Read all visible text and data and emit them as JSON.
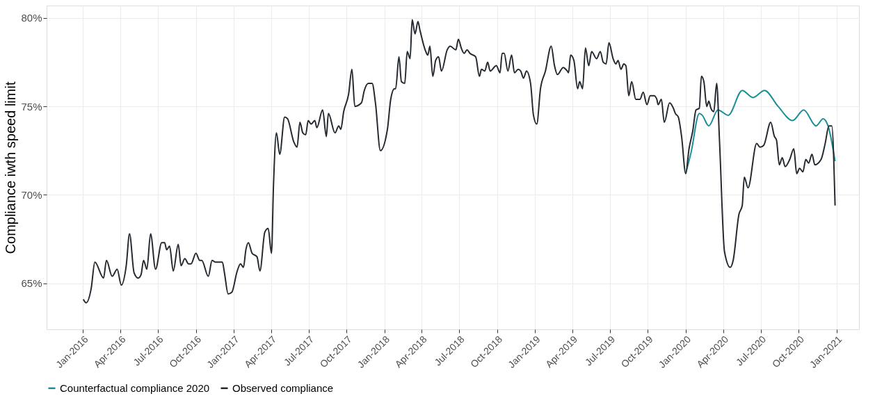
{
  "chart_data": {
    "type": "line",
    "ylabel": "Compliance iwth speed limit",
    "xlim": [
      "2015-10-05",
      "2021-02-24"
    ],
    "ylim": [
      62.4,
      80.7
    ],
    "xticks": [
      {
        "value": "2016-01-01",
        "label": "Jan-2016"
      },
      {
        "value": "2016-04-01",
        "label": "Apr-2016"
      },
      {
        "value": "2016-07-01",
        "label": "Jul-2016"
      },
      {
        "value": "2016-10-01",
        "label": "Oct-2016"
      },
      {
        "value": "2017-01-01",
        "label": "Jan-2017"
      },
      {
        "value": "2017-04-01",
        "label": "Apr-2017"
      },
      {
        "value": "2017-07-01",
        "label": "Jul-2017"
      },
      {
        "value": "2017-10-01",
        "label": "Oct-2017"
      },
      {
        "value": "2018-01-01",
        "label": "Jan-2018"
      },
      {
        "value": "2018-04-01",
        "label": "Apr-2018"
      },
      {
        "value": "2018-07-01",
        "label": "Jul-2018"
      },
      {
        "value": "2018-10-01",
        "label": "Oct-2018"
      },
      {
        "value": "2019-01-01",
        "label": "Jan-2019"
      },
      {
        "value": "2019-04-01",
        "label": "Apr-2019"
      },
      {
        "value": "2019-07-01",
        "label": "Jul-2019"
      },
      {
        "value": "2019-10-01",
        "label": "Oct-2019"
      },
      {
        "value": "2020-01-01",
        "label": "Jan-2020"
      },
      {
        "value": "2020-04-01",
        "label": "Apr-2020"
      },
      {
        "value": "2020-07-01",
        "label": "Jul-2020"
      },
      {
        "value": "2020-10-01",
        "label": "Oct-2020"
      },
      {
        "value": "2021-01-01",
        "label": "Jan-2021"
      }
    ],
    "yticks": [
      {
        "value": 65,
        "label": "65%"
      },
      {
        "value": 70,
        "label": "70%"
      },
      {
        "value": 75,
        "label": "75%"
      },
      {
        "value": 80,
        "label": "80%"
      }
    ],
    "grid": true,
    "legend": "bottom",
    "marker": "none",
    "line_style": "solid",
    "series": [
      {
        "name": "Counterfactual compliance 2020",
        "color": "#1a8f97",
        "x": [
          "2020-01-01",
          "2020-01-14",
          "2020-02-03",
          "2020-02-10",
          "2020-02-26",
          "2020-03-19",
          "2020-04-13",
          "2020-05-17",
          "2020-06-12",
          "2020-07-10",
          "2020-08-12",
          "2020-09-16",
          "2020-10-13",
          "2020-11-12",
          "2020-11-29",
          "2020-12-11",
          "2020-12-28"
        ],
        "values": [
          71.2,
          72.4,
          74.6,
          74.5,
          73.9,
          74.8,
          74.5,
          75.9,
          75.5,
          75.9,
          75.0,
          74.2,
          74.8,
          73.9,
          74.3,
          73.9,
          71.9
        ]
      },
      {
        "name": "Observed compliance",
        "color": "#252a30",
        "x": [
          "2016-01-02",
          "2016-01-09",
          "2016-01-21",
          "2016-01-30",
          "2016-02-20",
          "2016-02-27",
          "2016-03-12",
          "2016-03-24",
          "2016-04-03",
          "2016-04-15",
          "2016-04-23",
          "2016-05-04",
          "2016-05-14",
          "2016-05-21",
          "2016-05-27",
          "2016-06-04",
          "2016-06-13",
          "2016-06-25",
          "2016-07-10",
          "2016-07-17",
          "2016-07-22",
          "2016-07-29",
          "2016-08-07",
          "2016-08-19",
          "2016-08-26",
          "2016-09-04",
          "2016-09-13",
          "2016-09-19",
          "2016-10-01",
          "2016-10-10",
          "2016-10-15",
          "2016-10-31",
          "2016-11-09",
          "2016-11-17",
          "2016-12-04",
          "2016-12-09",
          "2016-12-18",
          "2016-12-27",
          "2017-01-09",
          "2017-01-17",
          "2017-01-24",
          "2017-01-30",
          "2017-02-05",
          "2017-02-14",
          "2017-02-26",
          "2017-03-05",
          "2017-03-17",
          "2017-03-25",
          "2017-04-02",
          "2017-04-07",
          "2017-04-14",
          "2017-04-22",
          "2017-05-04",
          "2017-05-11",
          "2017-05-26",
          "2017-06-03",
          "2017-06-10",
          "2017-06-17",
          "2017-06-24",
          "2017-06-30",
          "2017-07-07",
          "2017-07-16",
          "2017-07-21",
          "2017-08-04",
          "2017-08-13",
          "2017-08-18",
          "2017-09-03",
          "2017-09-12",
          "2017-09-17",
          "2017-09-24",
          "2017-10-06",
          "2017-10-14",
          "2017-10-21",
          "2017-11-06",
          "2017-11-13",
          "2017-11-23",
          "2017-12-02",
          "2017-12-10",
          "2017-12-22",
          "2018-01-08",
          "2018-01-16",
          "2018-01-25",
          "2018-01-28",
          "2018-02-05",
          "2018-02-11",
          "2018-02-19",
          "2018-02-25",
          "2018-03-04",
          "2018-03-09",
          "2018-03-16",
          "2018-03-23",
          "2018-03-28",
          "2018-04-11",
          "2018-04-16",
          "2018-04-21",
          "2018-04-28",
          "2018-05-05",
          "2018-05-12",
          "2018-05-19",
          "2018-06-02",
          "2018-06-09",
          "2018-06-23",
          "2018-06-29",
          "2018-07-06",
          "2018-07-13",
          "2018-07-20",
          "2018-07-27",
          "2018-08-10",
          "2018-08-19",
          "2018-08-24",
          "2018-09-01",
          "2018-09-08",
          "2018-09-14",
          "2018-09-29",
          "2018-10-08",
          "2018-10-13",
          "2018-10-18",
          "2018-10-27",
          "2018-11-05",
          "2018-11-12",
          "2018-11-21",
          "2018-11-27",
          "2018-12-04",
          "2018-12-11",
          "2018-12-21",
          "2018-12-28",
          "2019-01-05",
          "2019-01-14",
          "2019-01-26",
          "2019-02-09",
          "2019-02-17",
          "2019-02-24",
          "2019-03-10",
          "2019-03-20",
          "2019-03-23",
          "2019-03-28",
          "2019-04-05",
          "2019-04-14",
          "2019-04-19",
          "2019-04-26",
          "2019-05-03",
          "2019-05-11",
          "2019-05-18",
          "2019-05-30",
          "2019-06-08",
          "2019-06-15",
          "2019-06-22",
          "2019-06-29",
          "2019-07-09",
          "2019-07-16",
          "2019-07-21",
          "2019-07-28",
          "2019-08-04",
          "2019-08-09",
          "2019-08-16",
          "2019-08-23",
          "2019-09-02",
          "2019-09-12",
          "2019-09-20",
          "2019-09-29",
          "2019-10-07",
          "2019-10-16",
          "2019-10-23",
          "2019-10-26",
          "2019-11-03",
          "2019-11-10",
          "2019-11-23",
          "2019-12-02",
          "2019-12-07",
          "2019-12-14",
          "2019-12-22",
          "2020-01-01",
          "2020-01-09",
          "2020-01-18",
          "2020-01-26",
          "2020-02-03",
          "2020-02-08",
          "2020-02-14",
          "2020-02-21",
          "2020-02-26",
          "2020-03-02",
          "2020-03-09",
          "2020-03-16",
          "2020-03-23",
          "2020-04-04",
          "2020-04-18",
          "2020-04-25",
          "2020-05-09",
          "2020-05-17",
          "2020-05-22",
          "2020-05-31",
          "2020-06-21",
          "2020-06-29",
          "2020-07-08",
          "2020-07-25",
          "2020-08-03",
          "2020-08-08",
          "2020-08-15",
          "2020-08-22",
          "2020-08-29",
          "2020-09-09",
          "2020-09-19",
          "2020-09-26",
          "2020-10-03",
          "2020-10-11",
          "2020-10-18",
          "2020-10-25",
          "2020-11-02",
          "2020-11-09",
          "2020-11-24",
          "2020-12-04",
          "2020-12-13",
          "2020-12-20",
          "2020-12-28"
        ],
        "values": [
          64.1,
          63.9,
          64.7,
          66.2,
          65.3,
          66.3,
          65.4,
          65.8,
          64.9,
          66.0,
          67.8,
          65.6,
          65.3,
          65.5,
          66.3,
          65.8,
          67.8,
          65.8,
          67.3,
          67.3,
          66.9,
          67.1,
          65.7,
          67.2,
          66.0,
          66.4,
          66.1,
          66.1,
          66.7,
          66.3,
          66.3,
          65.4,
          66.3,
          66.2,
          66.2,
          65.6,
          64.4,
          64.5,
          65.7,
          66.1,
          65.9,
          66.9,
          67.3,
          66.7,
          66.5,
          65.7,
          67.9,
          68.1,
          66.7,
          70.6,
          73.5,
          72.3,
          74.4,
          74.3,
          73.0,
          72.7,
          74.1,
          73.5,
          73.4,
          74.2,
          74.0,
          74.2,
          73.8,
          74.8,
          73.3,
          74.6,
          73.5,
          73.9,
          73.7,
          74.7,
          75.7,
          77.1,
          75.0,
          75.2,
          75.9,
          76.3,
          76.3,
          75.2,
          72.5,
          73.7,
          75.4,
          76.0,
          76.0,
          77.8,
          76.4,
          76.3,
          78.1,
          77.7,
          79.9,
          79.1,
          79.8,
          79.3,
          78.1,
          77.9,
          78.4,
          76.7,
          77.6,
          77.8,
          77.0,
          78.2,
          78.4,
          78.2,
          78.8,
          78.3,
          78.0,
          78.2,
          78.0,
          77.8,
          76.7,
          77.1,
          77.0,
          77.5,
          77.0,
          77.3,
          76.9,
          78.0,
          78.0,
          77.0,
          77.9,
          76.9,
          77.1,
          77.0,
          76.6,
          77.0,
          76.3,
          74.5,
          74.0,
          76.0,
          77.0,
          78.4,
          77.3,
          76.8,
          77.2,
          77.0,
          76.9,
          77.9,
          77.6,
          76.0,
          76.4,
          76.0,
          78.3,
          77.3,
          78.1,
          77.7,
          78.1,
          77.5,
          77.4,
          78.6,
          77.7,
          77.4,
          77.6,
          77.1,
          77.4,
          77.3,
          75.6,
          76.4,
          75.4,
          75.4,
          75.8,
          75.1,
          75.6,
          75.6,
          75.4,
          75.1,
          75.4,
          74.1,
          75.2,
          74.9,
          74.6,
          74.4,
          73.3,
          71.2,
          72.6,
          73.6,
          74.8,
          74.9,
          76.7,
          76.4,
          75.0,
          75.3,
          74.9,
          74.7,
          76.3,
          73.0,
          66.8,
          65.9,
          66.3,
          68.9,
          69.4,
          71.0,
          70.4,
          72.9,
          72.7,
          72.8,
          74.1,
          73.3,
          73.1,
          71.7,
          72.1,
          71.6,
          72.0,
          72.6,
          71.2,
          71.5,
          71.3,
          72.0,
          71.8,
          72.3,
          71.7,
          72.0,
          72.9,
          73.9,
          73.9,
          69.4
        ]
      }
    ]
  }
}
